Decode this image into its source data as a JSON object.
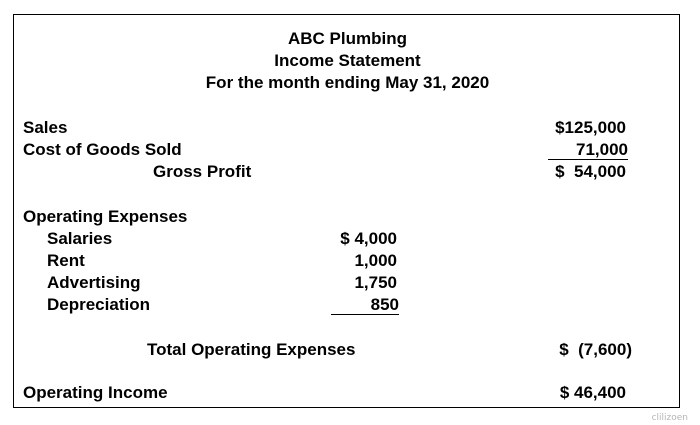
{
  "header": {
    "company": "ABC Plumbing",
    "statement": "Income Statement",
    "period": "For the month ending May 31, 2020"
  },
  "revenue": {
    "sales_label": "Sales",
    "sales_value": "$125,000",
    "cogs_label": "Cost of Goods Sold",
    "cogs_value": "71,000",
    "gross_profit_label": "Gross Profit",
    "gross_profit_value": "$  54,000"
  },
  "operating_expenses": {
    "heading": "Operating Expenses",
    "items": [
      {
        "label": "Salaries",
        "value": "$ 4,000"
      },
      {
        "label": "Rent",
        "value": "1,000"
      },
      {
        "label": "Advertising",
        "value": "1,750"
      },
      {
        "label": "Depreciation",
        "value": "850"
      }
    ],
    "total_label": "Total Operating Expenses",
    "total_value": "$  (7,600)"
  },
  "operating_income": {
    "label": "Operating Income",
    "value": "$ 46,400"
  },
  "credit": "clilizoen"
}
